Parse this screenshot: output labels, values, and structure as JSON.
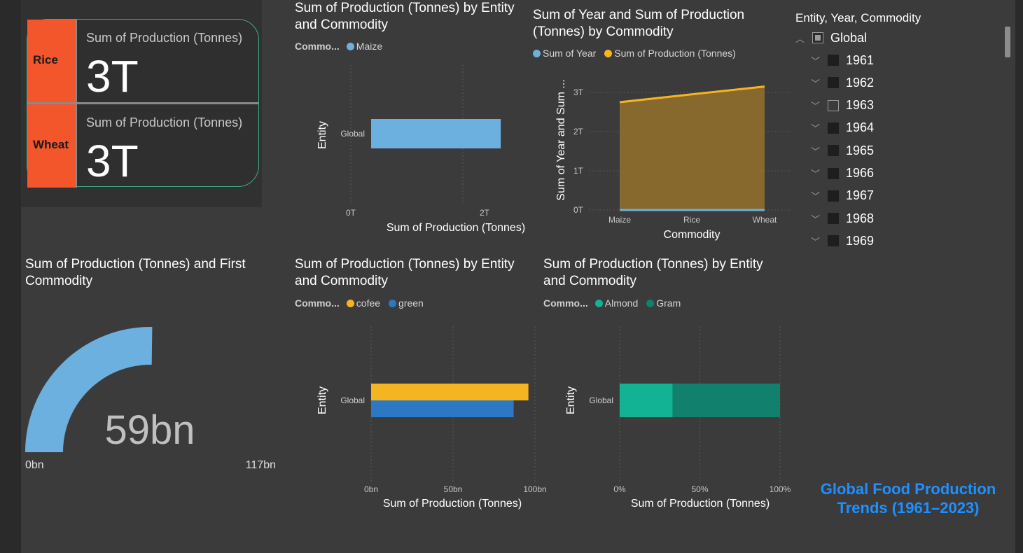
{
  "colors": {
    "background": "#3b3b3b",
    "card_category": "#f2562a",
    "card_border": "#3fa78a",
    "maize": "#6cb0e0",
    "sum_of_year": "#6cb0e0",
    "sum_of_production": "#f5b521",
    "area_fill": "#8b6b2c",
    "cofee": "#f5b521",
    "green": "#2d78c5",
    "almond": "#12b294",
    "gram": "#11806c",
    "gauge": "#6cb0e0",
    "brand": "#1e90ff"
  },
  "multirow_card": {
    "rows": [
      {
        "category": "Rice",
        "label": "Sum of Production (Tonnes)",
        "value": "3T"
      },
      {
        "category": "Wheat",
        "label": "Sum of Production (Tonnes)",
        "value": "3T"
      }
    ]
  },
  "bar_maize": {
    "title": "Sum of Production (Tonnes) by Entity and Commodity",
    "legend_title": "Commo...",
    "legend": [
      "Maize"
    ],
    "chart_data": {
      "type": "bar",
      "orientation": "horizontal",
      "categories": [
        "Global"
      ],
      "series": [
        {
          "name": "Maize",
          "values": [
            2.3
          ]
        }
      ],
      "value_unit": "T",
      "xlim": [
        0,
        2.6
      ],
      "x_ticks": [
        "0T",
        "2T"
      ],
      "xlabel": "Sum of Production (Tonnes)",
      "ylabel": "Entity"
    }
  },
  "area_chart": {
    "title": "Sum of Year and Sum of Production (Tonnes) by Commodity",
    "legend": [
      "Sum of Year",
      "Sum of Production (Tonnes)"
    ],
    "chart_data": {
      "type": "area",
      "categories": [
        "Maize",
        "Rice",
        "Wheat"
      ],
      "series": [
        {
          "name": "Sum of Year",
          "values": [
            0,
            0,
            0
          ]
        },
        {
          "name": "Sum of Production (Tonnes)",
          "values": [
            2.75,
            2.95,
            3.15
          ]
        }
      ],
      "value_unit": "T",
      "ylim": [
        0,
        3.2
      ],
      "y_ticks": [
        "0T",
        "1T",
        "2T",
        "3T"
      ],
      "xlabel": "Commodity",
      "ylabel": "Sum of Year and Sum ..."
    }
  },
  "slicer": {
    "title": "Entity, Year, Commodity",
    "root": "Global",
    "years": [
      "1961",
      "1962",
      "1963",
      "1964",
      "1965",
      "1966",
      "1967",
      "1968",
      "1969"
    ],
    "empty_year": "1963"
  },
  "gauge": {
    "title": "Sum of Production (Tonnes) and First Commodity",
    "value_label": "59bn",
    "min_label": "0bn",
    "max_label": "117bn",
    "chart_data": {
      "type": "gauge",
      "value": 59,
      "min": 0,
      "max": 117,
      "unit": "bn"
    }
  },
  "bar_cofee_green": {
    "title": "Sum of Production (Tonnes) by Entity and Commodity",
    "legend_title": "Commo...",
    "legend": [
      "cofee",
      "green"
    ],
    "chart_data": {
      "type": "bar",
      "orientation": "horizontal",
      "categories": [
        "Global"
      ],
      "series": [
        {
          "name": "cofee",
          "values": [
            96
          ]
        },
        {
          "name": "green",
          "values": [
            87
          ]
        }
      ],
      "value_unit": "bn",
      "xlim": [
        0,
        100
      ],
      "x_ticks": [
        "0bn",
        "50bn",
        "100bn"
      ],
      "xlabel": "Sum of Production (Tonnes)",
      "ylabel": "Entity"
    }
  },
  "bar_almond_gram": {
    "title": "Sum of Production (Tonnes) by Entity and Commodity",
    "legend_title": "Commo...",
    "legend": [
      "Almond",
      "Gram"
    ],
    "chart_data": {
      "type": "bar",
      "orientation": "horizontal",
      "stacking": "percent",
      "categories": [
        "Global"
      ],
      "series": [
        {
          "name": "Almond",
          "values": [
            33
          ]
        },
        {
          "name": "Gram",
          "values": [
            67
          ]
        }
      ],
      "xlim": [
        0,
        100
      ],
      "x_ticks": [
        "0%",
        "50%",
        "100%"
      ],
      "xlabel": "Sum of Production (Tonnes)",
      "ylabel": "Entity"
    }
  },
  "brand": {
    "line1": "Global Food Production",
    "line2": "Trends (1961–2023)"
  }
}
